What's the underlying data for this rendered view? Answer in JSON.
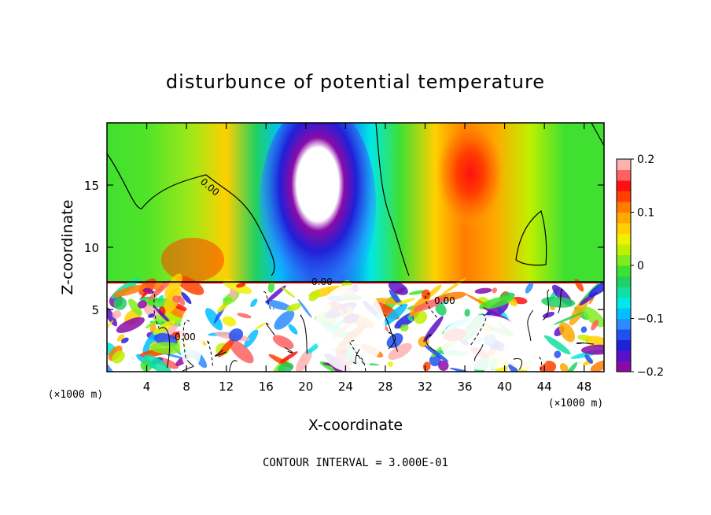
{
  "chart_data": {
    "type": "heatmap",
    "title": "disturbunce of potential temperature",
    "xlabel": "X-coordinate",
    "ylabel": "Z-coordinate",
    "x_unit": "(×1000 m)",
    "y_unit": "(×1000 m)",
    "footer": "CONTOUR INTERVAL = 3.000E-01",
    "xlim": [
      0,
      50
    ],
    "ylim": [
      0,
      20
    ],
    "x_ticks": [
      4,
      8,
      12,
      16,
      20,
      24,
      28,
      32,
      36,
      40,
      44,
      48
    ],
    "x_tick_labels": [
      "4",
      "8",
      "12",
      "16",
      "20",
      "24",
      "28",
      "32",
      "36",
      "40",
      "44",
      "48"
    ],
    "y_ticks": [
      5,
      10,
      15
    ],
    "y_tick_labels": [
      "5",
      "10",
      "15"
    ],
    "contour_labels": [
      "0.00",
      "0.00",
      "0.00",
      "0.00"
    ],
    "colorbar": {
      "min": -0.2,
      "max": 0.2,
      "tick_values": [
        0.2,
        0.1,
        0,
        -0.1,
        -0.2
      ],
      "tick_labels": [
        "0.2",
        "0.1",
        "0",
        "−0.1",
        "−0.2"
      ],
      "colors": [
        "#8a0aa8",
        "#5a10c8",
        "#2020d8",
        "#2050f0",
        "#2a8cff",
        "#00c0ff",
        "#00e8e8",
        "#10e0a0",
        "#20d060",
        "#40e030",
        "#80ec20",
        "#c0f000",
        "#f0f000",
        "#ffd000",
        "#ffa800",
        "#ff7c00",
        "#ff4000",
        "#ff1010",
        "#ff6060",
        "#ffb0b0"
      ]
    },
    "upper_layer_profile": [
      {
        "x": 0,
        "value": 0.0
      },
      {
        "x": 3,
        "value": 0.0
      },
      {
        "x": 6,
        "value": 0.02
      },
      {
        "x": 9,
        "value": 0.05
      },
      {
        "x": 12,
        "value": 0.04
      },
      {
        "x": 15,
        "value": -0.06
      },
      {
        "x": 18,
        "value": -0.15
      },
      {
        "x": 21,
        "value": -0.2
      },
      {
        "x": 24,
        "value": -0.14
      },
      {
        "x": 27,
        "value": -0.04
      },
      {
        "x": 30,
        "value": 0.03
      },
      {
        "x": 33,
        "value": 0.09
      },
      {
        "x": 36,
        "value": 0.12
      },
      {
        "x": 39,
        "value": 0.09
      },
      {
        "x": 42,
        "value": 0.03
      },
      {
        "x": 45,
        "value": 0.01
      },
      {
        "x": 48,
        "value": 0.0
      },
      {
        "x": 50,
        "value": 0.0
      }
    ]
  }
}
